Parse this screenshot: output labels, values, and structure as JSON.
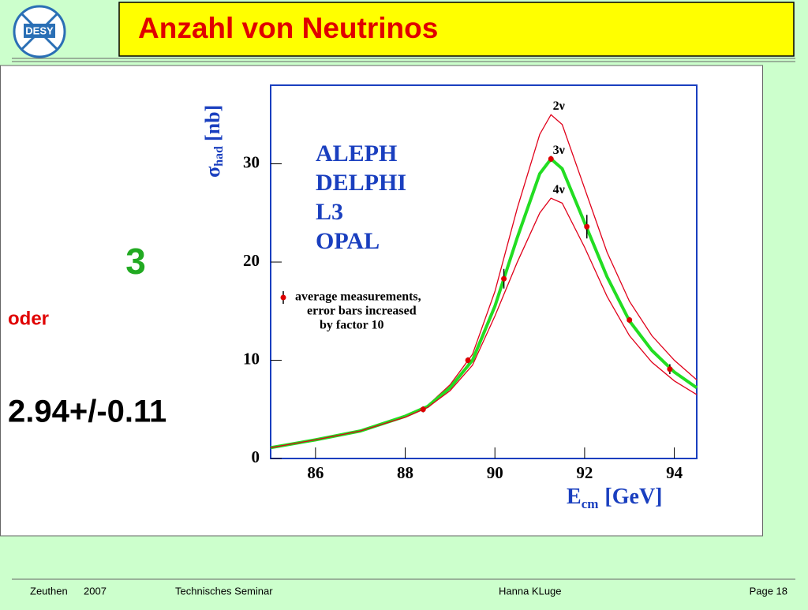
{
  "header": {
    "logo": "DESY",
    "title": "Anzahl von Neutrinos"
  },
  "left_text": {
    "answer": "3",
    "or": "oder",
    "result": "2.94+/-0.11"
  },
  "chart_data": {
    "type": "line",
    "y_label": {
      "symbol": "σ",
      "subscript": "had",
      "unit": "[nb]"
    },
    "x_label": {
      "symbol": "E",
      "subscript": "cm",
      "unit": "[GeV]"
    },
    "experiments": [
      "ALEPH",
      "DELPHI",
      "L3",
      "OPAL"
    ],
    "x": [
      85,
      86,
      87,
      88,
      88.5,
      89,
      89.5,
      90,
      90.5,
      91,
      91.25,
      91.5,
      92,
      92.5,
      93,
      93.5,
      94,
      94.5
    ],
    "series": [
      {
        "name": "2ν",
        "color": "#e0001a",
        "values": [
          1.1,
          1.9,
          2.8,
          4.4,
          5.4,
          7.5,
          10.6,
          17,
          25.5,
          33,
          35,
          34,
          27.5,
          21,
          16,
          12.5,
          10,
          8
        ]
      },
      {
        "name": "3ν",
        "color": "#22dd22",
        "values": [
          1.1,
          1.9,
          2.8,
          4.3,
          5.3,
          7.2,
          10,
          15.5,
          22.5,
          29,
          30.5,
          29.5,
          24,
          18.5,
          14,
          11,
          8.8,
          7.2
        ]
      },
      {
        "name": "4ν",
        "color": "#e0001a",
        "values": [
          1.1,
          1.9,
          2.8,
          4.2,
          5.2,
          6.9,
          9.5,
          14.5,
          20,
          25,
          26.5,
          26,
          21.5,
          16.5,
          12.5,
          9.8,
          7.9,
          6.5
        ]
      }
    ],
    "points": {
      "legend": [
        "average measurements,",
        "error bars increased",
        "by factor 10"
      ],
      "color": "#dd0000",
      "x": [
        88.4,
        89.4,
        90.2,
        91.25,
        92.05,
        93.0,
        93.9
      ],
      "values": [
        5.0,
        10.0,
        18.3,
        30.5,
        23.6,
        14.1,
        9.1
      ],
      "errors": [
        0.3,
        0.3,
        1.0,
        0.3,
        1.2,
        0.3,
        0.5
      ]
    },
    "xlim": [
      85,
      94.5
    ],
    "ylim": [
      0,
      38
    ],
    "xticks": [
      86,
      88,
      90,
      92,
      94
    ],
    "yticks": [
      0,
      10,
      20,
      30
    ]
  },
  "footer": {
    "place": "Zeuthen",
    "year": "2007",
    "event": "Technisches Seminar",
    "author": "Hanna KLuge",
    "page": "Page 18"
  }
}
